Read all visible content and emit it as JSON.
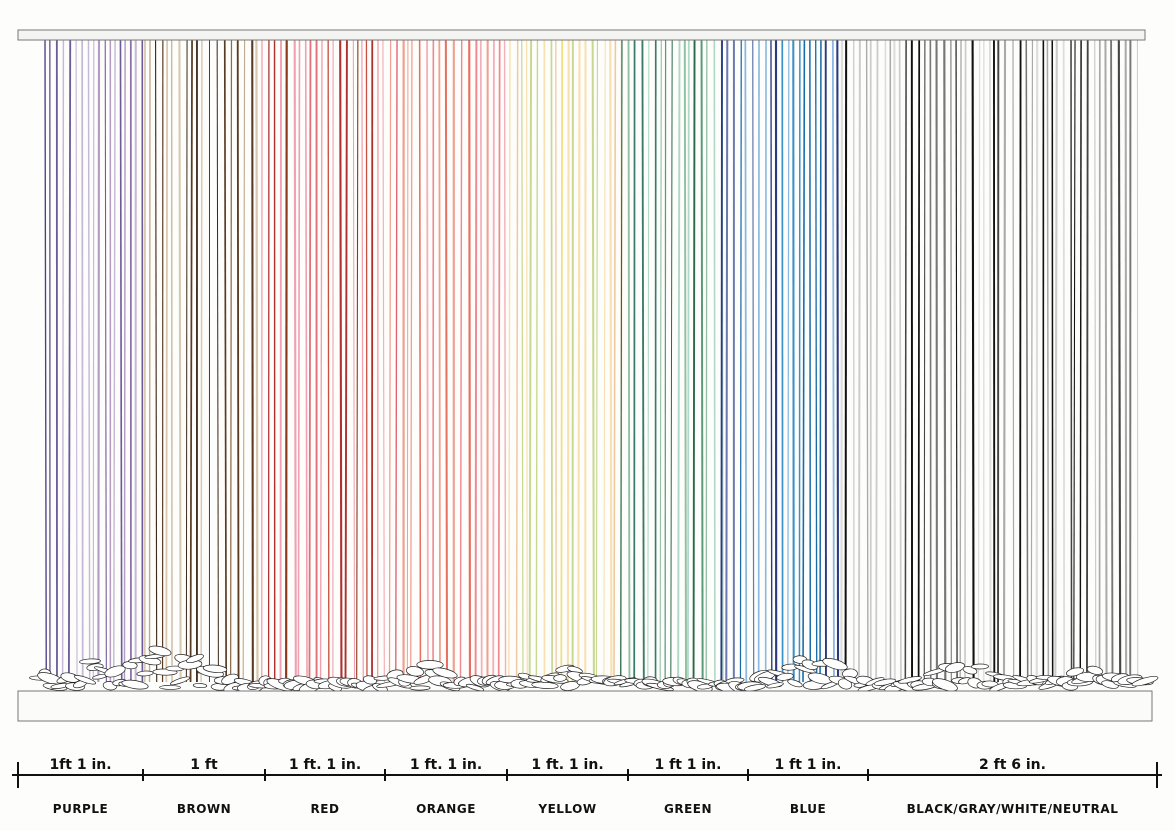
{
  "segments": [
    {
      "length": "1ft 1 in.",
      "name": "PURPLE"
    },
    {
      "length": "1 ft",
      "name": "BROWN"
    },
    {
      "length": "1 ft. 1 in.",
      "name": "RED"
    },
    {
      "length": "1 ft. 1 in.",
      "name": "ORANGE"
    },
    {
      "length": "1 ft. 1 in.",
      "name": "YELLOW"
    },
    {
      "length": "1 ft 1 in.",
      "name": "GREEN"
    },
    {
      "length": "1 ft 1 in.",
      "name": "BLUE"
    },
    {
      "length": "2 ft 6 in.",
      "name": "BLACK/GRAY/WHITE/NEUTRAL"
    }
  ]
}
